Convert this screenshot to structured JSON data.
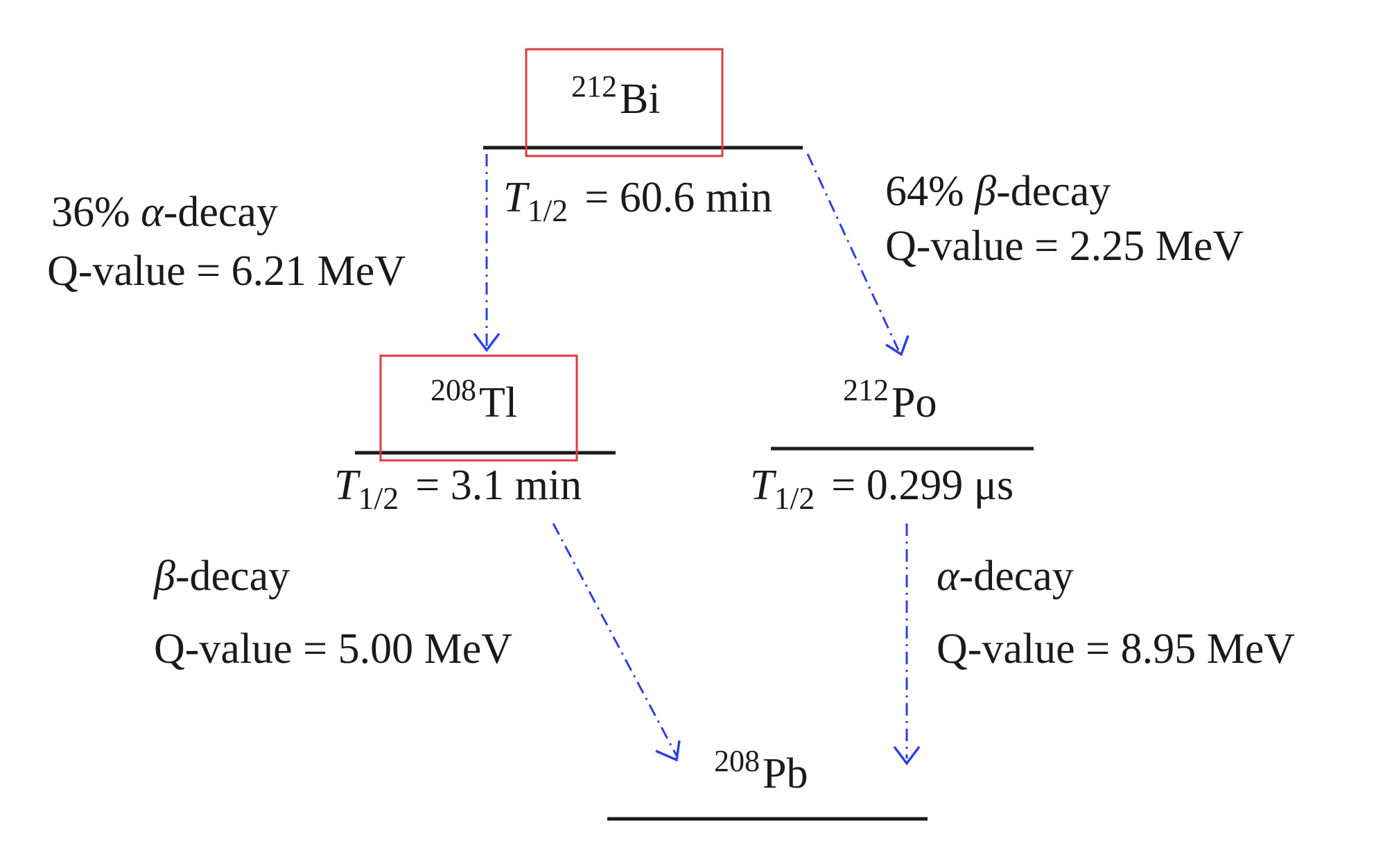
{
  "nuclides": {
    "bi212": {
      "mass": "212",
      "symbol": "Bi",
      "half_life_label": "T",
      "half_life_sub": "1/2",
      "half_life_value": "= 60.6 min",
      "highlighted": true
    },
    "tl208": {
      "mass": "208",
      "symbol": "Tl",
      "half_life_label": "T",
      "half_life_sub": "1/2",
      "half_life_value": "= 3.1 min",
      "highlighted": true
    },
    "po212": {
      "mass": "212",
      "symbol": "Po",
      "half_life_label": "T",
      "half_life_sub": "1/2",
      "half_life_value": "= 0.299 μs",
      "highlighted": false
    },
    "pb208": {
      "mass": "208",
      "symbol": "Pb",
      "highlighted": false
    }
  },
  "decays": {
    "bi_to_tl": {
      "percent": "36%",
      "greek": "α",
      "type": "-decay",
      "q_value": "Q-value = 6.21 MeV"
    },
    "bi_to_po": {
      "percent": "64%",
      "greek": "β",
      "type": "-decay",
      "q_value": "Q-value = 2.25 MeV"
    },
    "tl_to_pb": {
      "greek": "β",
      "type": "-decay",
      "q_value": "Q-value = 5.00 MeV"
    },
    "po_to_pb": {
      "greek": "α",
      "type": "-decay",
      "q_value": "Q-value = 8.95 MeV"
    }
  },
  "colors": {
    "level_line": "#1a1a1a",
    "highlight_box": "#e03a3a",
    "arrow": "#2f3fe0"
  }
}
